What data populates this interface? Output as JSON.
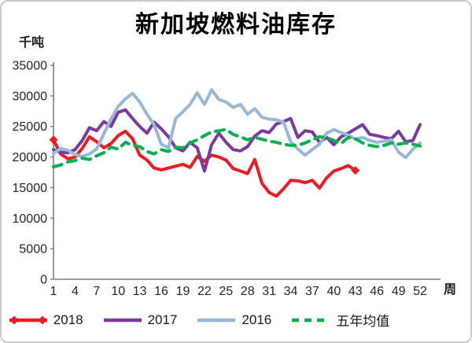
{
  "chart_data": {
    "type": "line",
    "title": "新加坡燃料油库存",
    "ylabel": "千吨",
    "xlabel": "周",
    "ylim": [
      0,
      35000
    ],
    "yticks": [
      0,
      5000,
      10000,
      15000,
      20000,
      25000,
      30000,
      35000
    ],
    "xticks": [
      1,
      4,
      7,
      10,
      13,
      16,
      19,
      22,
      25,
      28,
      31,
      34,
      37,
      40,
      43,
      46,
      49,
      52
    ],
    "grid": false,
    "legend_position": "bottom",
    "axis_color": "#808080",
    "text_color": "#262626",
    "x_weeks": 52,
    "series": [
      {
        "name": "2018",
        "color": "#ed1c24",
        "style": "solid",
        "markers": [
          0,
          42
        ],
        "values": [
          22800,
          20500,
          19700,
          20000,
          21400,
          23300,
          22500,
          21500,
          22200,
          23500,
          24200,
          23000,
          20300,
          19500,
          18200,
          17900,
          18200,
          18500,
          18800,
          18300,
          20100,
          19300,
          20300,
          20000,
          19500,
          18100,
          17700,
          17300,
          19600,
          15700,
          14200,
          13600,
          14800,
          16200,
          16100,
          15800,
          16200,
          14900,
          16600,
          17700,
          18100,
          18600,
          17800
        ]
      },
      {
        "name": "2017",
        "color": "#7a3b9d",
        "style": "solid",
        "values": [
          21200,
          20800,
          20700,
          21200,
          22700,
          24800,
          24300,
          25800,
          25000,
          27300,
          27700,
          26300,
          25000,
          23900,
          25700,
          24600,
          23300,
          21500,
          21000,
          22400,
          21500,
          17700,
          22000,
          23900,
          22400,
          21200,
          21000,
          21700,
          23400,
          24300,
          24000,
          25400,
          25800,
          26300,
          23200,
          24300,
          24100,
          22400,
          23200,
          22000,
          23300,
          23900,
          24600,
          25300,
          23700,
          23500,
          23200,
          23000,
          24200,
          22500,
          22700,
          25300
        ]
      },
      {
        "name": "2016",
        "color": "#9ab7d8",
        "style": "solid",
        "values": [
          20600,
          21400,
          21100,
          20400,
          20100,
          20500,
          21300,
          23800,
          26200,
          28300,
          29500,
          30400,
          29000,
          27000,
          25300,
          22100,
          21500,
          26300,
          27400,
          28600,
          30500,
          28600,
          31000,
          29400,
          29000,
          28100,
          28600,
          27000,
          27900,
          26500,
          26200,
          26100,
          25700,
          22500,
          21300,
          20300,
          21200,
          22100,
          23900,
          24500,
          24000,
          23600,
          22900,
          23200,
          22700,
          22400,
          22600,
          22800,
          20800,
          19900,
          21300,
          22300
        ]
      },
      {
        "name": "五年均值",
        "color": "#00b050",
        "style": "dashed",
        "dash": "11 8",
        "values": [
          18400,
          18700,
          19200,
          19400,
          19800,
          19600,
          20200,
          20700,
          21600,
          21300,
          22400,
          21900,
          21700,
          20900,
          20500,
          21200,
          20900,
          21600,
          21500,
          22300,
          22800,
          23500,
          24100,
          24300,
          24500,
          23700,
          23300,
          22800,
          23200,
          22900,
          22600,
          22400,
          22100,
          21900,
          21900,
          22300,
          22800,
          23300,
          23200,
          22700,
          22200,
          23200,
          23000,
          22300,
          21900,
          21700,
          21900,
          22300,
          22100,
          22300,
          22100,
          21800
        ]
      }
    ]
  },
  "legend": {
    "items": [
      {
        "label": "2018"
      },
      {
        "label": "2017"
      },
      {
        "label": "2016"
      },
      {
        "label": "五年均值"
      }
    ]
  }
}
